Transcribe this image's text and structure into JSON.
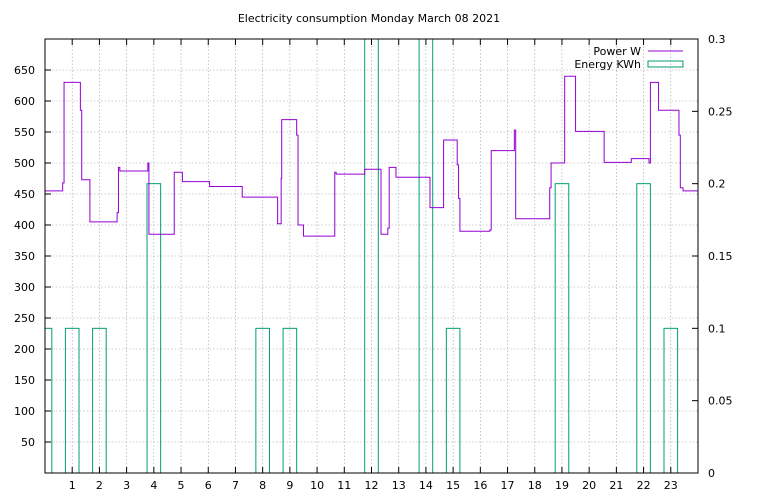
{
  "chart_data": {
    "type": "line",
    "title": "Electricity consumption Monday March 08 2021",
    "xlabel": "",
    "ylabel": "",
    "y2label": "",
    "xlim": [
      0,
      24
    ],
    "ylim": [
      0,
      700
    ],
    "y2lim": [
      0,
      0.3
    ],
    "xticks": [
      "1",
      "2",
      "3",
      "4",
      "5",
      "6",
      "7",
      "8",
      "9",
      "10",
      "11",
      "12",
      "13",
      "14",
      "15",
      "16",
      "17",
      "18",
      "19",
      "20",
      "21",
      "22",
      "23"
    ],
    "yticks": [
      "50",
      "100",
      "150",
      "200",
      "250",
      "300",
      "350",
      "400",
      "450",
      "500",
      "550",
      "600",
      "650"
    ],
    "y2ticks": [
      "0",
      "0.05",
      "0.1",
      "0.15",
      "0.2",
      "0.25",
      "0.3"
    ],
    "grid": true,
    "legend_position": "top-right",
    "colors": {
      "power": "#9400d3",
      "energy": "#009e73",
      "grid": "#a0a0a0"
    },
    "series": [
      {
        "name": "Power W",
        "axis": "left",
        "style": "step",
        "points": [
          [
            0.0,
            455
          ],
          [
            0.6,
            455
          ],
          [
            0.65,
            468
          ],
          [
            0.7,
            630
          ],
          [
            1.25,
            630
          ],
          [
            1.3,
            585
          ],
          [
            1.35,
            473
          ],
          [
            1.6,
            473
          ],
          [
            1.65,
            405
          ],
          [
            2.6,
            405
          ],
          [
            2.65,
            420
          ],
          [
            2.7,
            493
          ],
          [
            2.75,
            487
          ],
          [
            3.75,
            487
          ],
          [
            3.78,
            500
          ],
          [
            3.82,
            385
          ],
          [
            4.7,
            385
          ],
          [
            4.75,
            485
          ],
          [
            5.0,
            485
          ],
          [
            5.05,
            470
          ],
          [
            6.0,
            470
          ],
          [
            6.05,
            462
          ],
          [
            7.2,
            462
          ],
          [
            7.25,
            445
          ],
          [
            8.5,
            445
          ],
          [
            8.55,
            402
          ],
          [
            8.65,
            402
          ],
          [
            8.68,
            475
          ],
          [
            8.7,
            570
          ],
          [
            9.2,
            570
          ],
          [
            9.25,
            545
          ],
          [
            9.3,
            400
          ],
          [
            9.45,
            400
          ],
          [
            9.5,
            382
          ],
          [
            10.6,
            382
          ],
          [
            10.65,
            485
          ],
          [
            10.7,
            482
          ],
          [
            11.7,
            482
          ],
          [
            11.75,
            490
          ],
          [
            12.3,
            490
          ],
          [
            12.35,
            385
          ],
          [
            12.55,
            385
          ],
          [
            12.6,
            395
          ],
          [
            12.65,
            493
          ],
          [
            12.85,
            493
          ],
          [
            12.9,
            477
          ],
          [
            14.1,
            477
          ],
          [
            14.15,
            428
          ],
          [
            14.6,
            428
          ],
          [
            14.65,
            537
          ],
          [
            15.1,
            537
          ],
          [
            15.15,
            497
          ],
          [
            15.2,
            443
          ],
          [
            15.25,
            390
          ],
          [
            16.3,
            390
          ],
          [
            16.35,
            392
          ],
          [
            16.4,
            520
          ],
          [
            17.2,
            520
          ],
          [
            17.25,
            553
          ],
          [
            17.3,
            410
          ],
          [
            18.5,
            410
          ],
          [
            18.55,
            460
          ],
          [
            18.6,
            500
          ],
          [
            19.05,
            500
          ],
          [
            19.1,
            640
          ],
          [
            19.45,
            640
          ],
          [
            19.5,
            551
          ],
          [
            20.5,
            551
          ],
          [
            20.55,
            501
          ],
          [
            21.5,
            501
          ],
          [
            21.55,
            507
          ],
          [
            22.15,
            507
          ],
          [
            22.2,
            500
          ],
          [
            22.25,
            630
          ],
          [
            22.5,
            630
          ],
          [
            22.55,
            585
          ],
          [
            23.25,
            585
          ],
          [
            23.3,
            545
          ],
          [
            23.35,
            460
          ],
          [
            23.4,
            460
          ],
          [
            23.45,
            455
          ],
          [
            24.0,
            455
          ]
        ]
      },
      {
        "name": "Energy KWh",
        "axis": "right",
        "style": "boxes",
        "boxwidth": 0.5,
        "x": [
          0,
          1,
          2,
          4,
          8,
          9,
          12,
          14,
          15,
          19,
          22,
          23
        ],
        "values": [
          0.1,
          0.1,
          0.1,
          0.2,
          0.1,
          0.1,
          0.3,
          0.3,
          0.1,
          0.2,
          0.2,
          0.1
        ]
      }
    ]
  }
}
